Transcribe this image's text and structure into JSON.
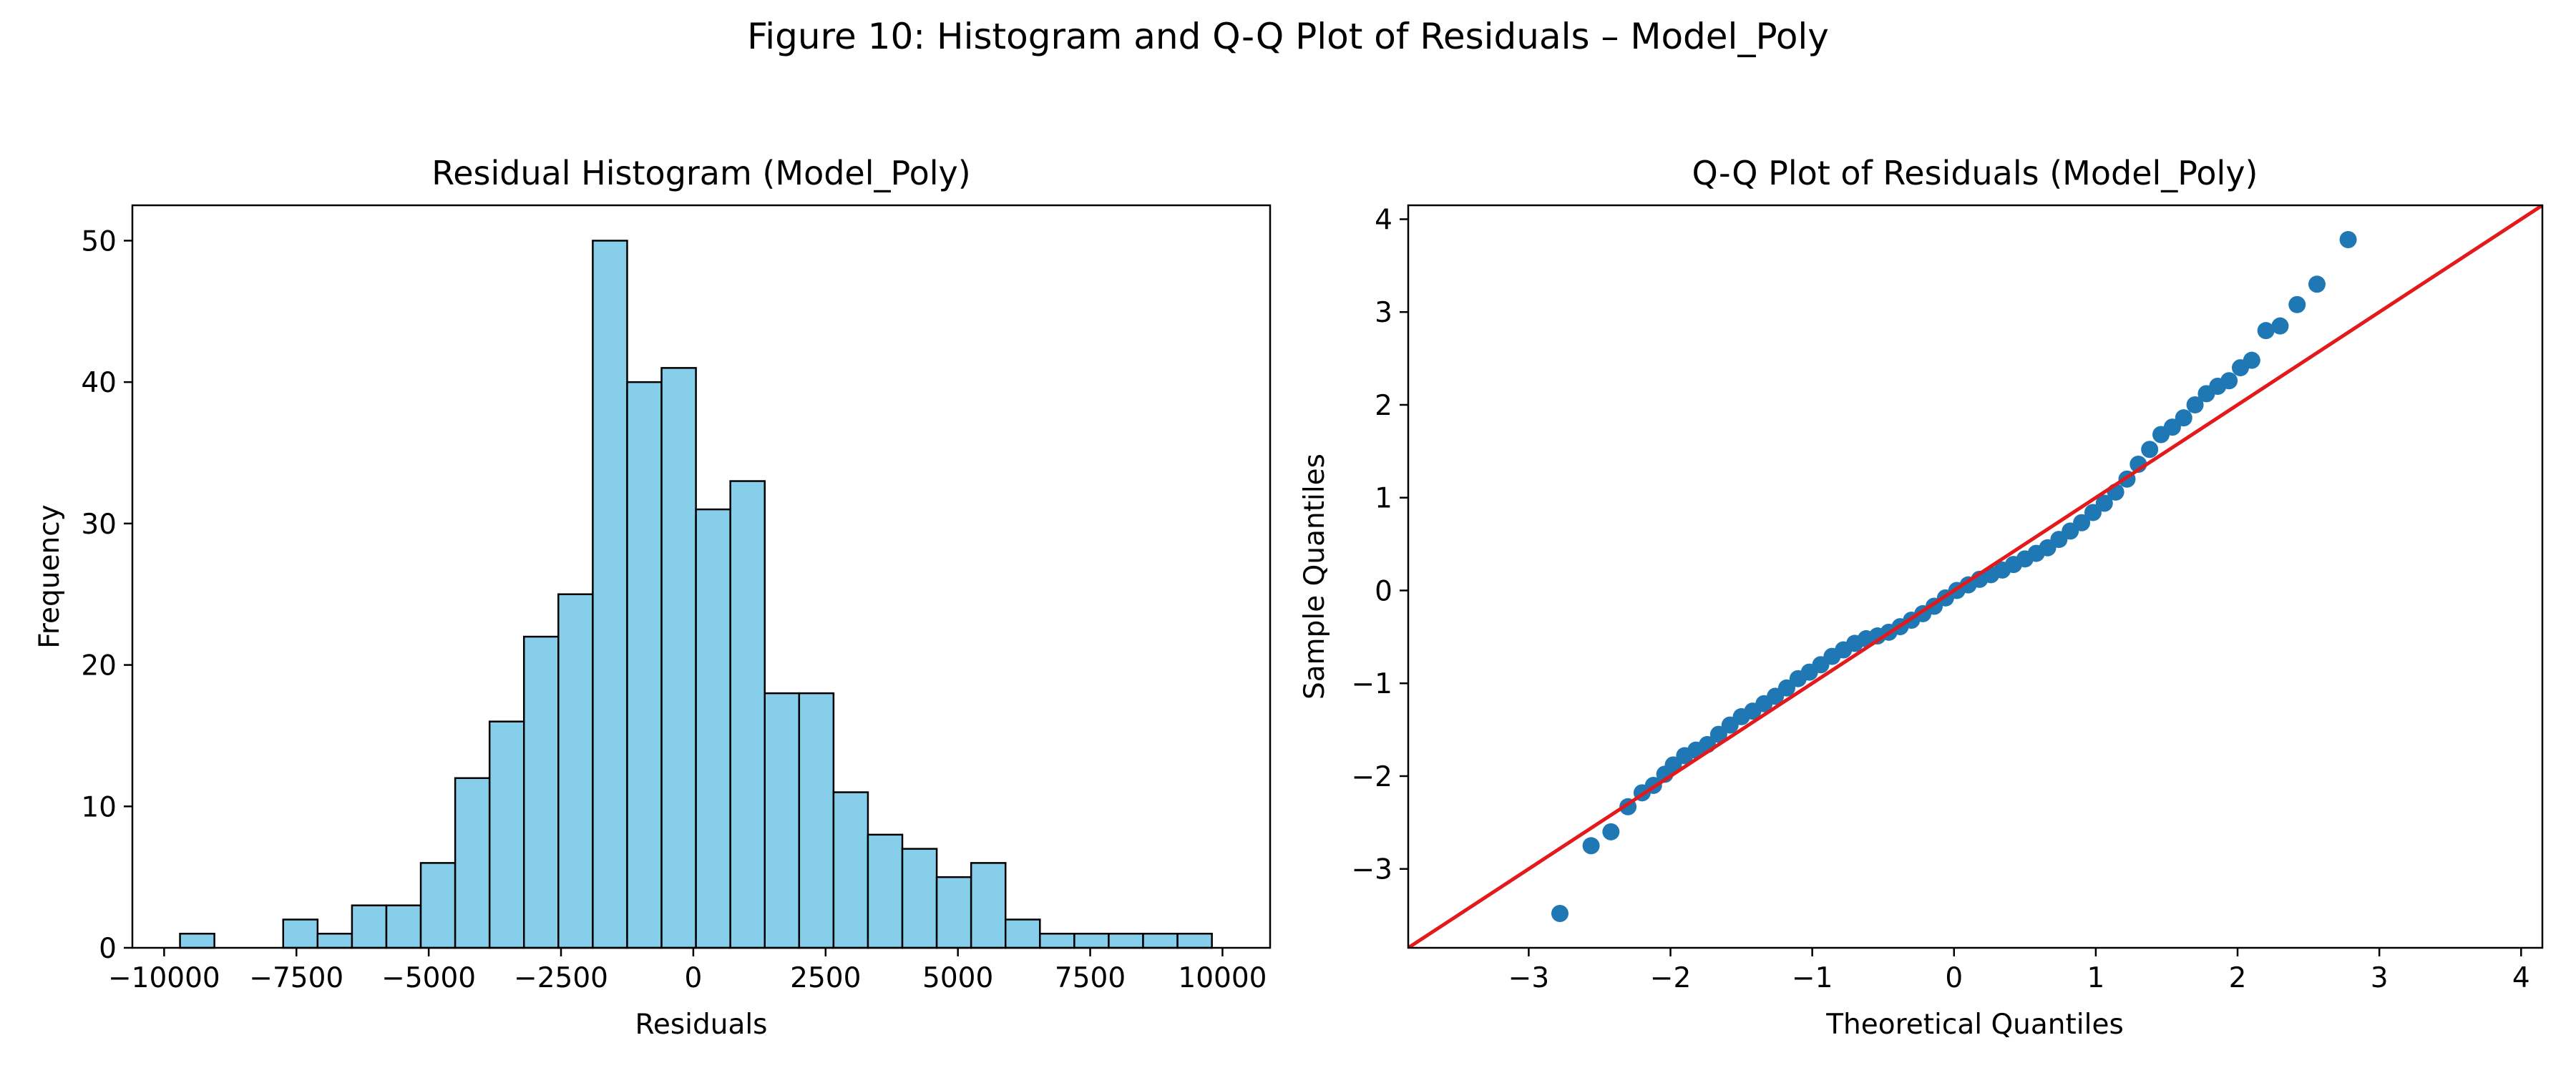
{
  "figure": {
    "suptitle": "Figure 10: Histogram and Q-Q Plot of Residuals – Model_Poly"
  },
  "colors": {
    "bar_fill": "#87ceeb",
    "bar_edge": "#000000",
    "points": "#1f77b4",
    "ref_line": "#e31a1c"
  },
  "chart_data": [
    {
      "type": "bar",
      "subtype": "histogram",
      "title": "Residual Histogram (Model_Poly)",
      "xlabel": "Residuals",
      "ylabel": "Frequency",
      "xlim": [
        -10600,
        10900
      ],
      "ylim": [
        0,
        52.5
      ],
      "xticks": [
        -10000,
        -7500,
        -5000,
        -2500,
        0,
        2500,
        5000,
        7500,
        10000
      ],
      "xtick_labels": [
        "−10000",
        "−7500",
        "−5000",
        "−2500",
        "0",
        "2500",
        "5000",
        "7500",
        "10000"
      ],
      "yticks": [
        0,
        10,
        20,
        30,
        40,
        50
      ],
      "ytick_labels": [
        "0",
        "10",
        "20",
        "30",
        "40",
        "50"
      ],
      "bin_start": -9700,
      "bin_width": 650,
      "values": [
        1,
        0,
        0,
        2,
        1,
        3,
        3,
        6,
        12,
        16,
        22,
        25,
        50,
        40,
        41,
        31,
        33,
        18,
        18,
        11,
        8,
        7,
        5,
        6,
        2,
        1,
        1,
        1,
        1,
        1
      ]
    },
    {
      "type": "scatter",
      "subtype": "qq-plot",
      "title": "Q-Q Plot of Residuals (Model_Poly)",
      "xlabel": "Theoretical Quantiles",
      "ylabel": "Sample Quantiles",
      "xlim": [
        -3.85,
        4.15
      ],
      "ylim": [
        -3.85,
        4.15
      ],
      "xticks": [
        -3,
        -2,
        -1,
        0,
        1,
        2,
        3,
        4
      ],
      "xtick_labels": [
        "−3",
        "−2",
        "−1",
        "0",
        "1",
        "2",
        "3",
        "4"
      ],
      "yticks": [
        -3,
        -2,
        -1,
        0,
        1,
        2,
        3,
        4
      ],
      "ytick_labels": [
        "−3",
        "−2",
        "−1",
        "0",
        "1",
        "2",
        "3",
        "4"
      ],
      "reference_line": {
        "slope": 1,
        "intercept": 0
      },
      "points": [
        [
          -2.78,
          -3.48
        ],
        [
          -2.56,
          -2.75
        ],
        [
          -2.42,
          -2.6
        ],
        [
          -2.3,
          -2.33
        ],
        [
          -2.2,
          -2.18
        ],
        [
          -2.12,
          -2.1
        ],
        [
          -2.04,
          -1.98
        ],
        [
          -1.98,
          -1.88
        ],
        [
          -1.9,
          -1.78
        ],
        [
          -1.82,
          -1.72
        ],
        [
          -1.74,
          -1.66
        ],
        [
          -1.66,
          -1.55
        ],
        [
          -1.58,
          -1.45
        ],
        [
          -1.5,
          -1.36
        ],
        [
          -1.42,
          -1.3
        ],
        [
          -1.34,
          -1.22
        ],
        [
          -1.26,
          -1.14
        ],
        [
          -1.18,
          -1.05
        ],
        [
          -1.1,
          -0.95
        ],
        [
          -1.02,
          -0.88
        ],
        [
          -0.94,
          -0.8
        ],
        [
          -0.86,
          -0.71
        ],
        [
          -0.78,
          -0.64
        ],
        [
          -0.7,
          -0.57
        ],
        [
          -0.62,
          -0.52
        ],
        [
          -0.54,
          -0.49
        ],
        [
          -0.46,
          -0.45
        ],
        [
          -0.38,
          -0.39
        ],
        [
          -0.3,
          -0.32
        ],
        [
          -0.22,
          -0.25
        ],
        [
          -0.14,
          -0.17
        ],
        [
          -0.06,
          -0.08
        ],
        [
          0.02,
          0.0
        ],
        [
          0.1,
          0.06
        ],
        [
          0.18,
          0.12
        ],
        [
          0.26,
          0.17
        ],
        [
          0.34,
          0.22
        ],
        [
          0.42,
          0.28
        ],
        [
          0.5,
          0.34
        ],
        [
          0.58,
          0.4
        ],
        [
          0.66,
          0.46
        ],
        [
          0.74,
          0.55
        ],
        [
          0.82,
          0.64
        ],
        [
          0.9,
          0.73
        ],
        [
          0.98,
          0.84
        ],
        [
          1.06,
          0.94
        ],
        [
          1.14,
          1.06
        ],
        [
          1.22,
          1.2
        ],
        [
          1.3,
          1.36
        ],
        [
          1.38,
          1.52
        ],
        [
          1.46,
          1.68
        ],
        [
          1.54,
          1.76
        ],
        [
          1.62,
          1.86
        ],
        [
          1.7,
          2.0
        ],
        [
          1.78,
          2.12
        ],
        [
          1.86,
          2.2
        ],
        [
          1.94,
          2.26
        ],
        [
          2.02,
          2.4
        ],
        [
          2.1,
          2.48
        ],
        [
          2.2,
          2.8
        ],
        [
          2.3,
          2.85
        ],
        [
          2.42,
          3.08
        ],
        [
          2.56,
          3.3
        ],
        [
          2.78,
          3.78
        ]
      ]
    }
  ]
}
